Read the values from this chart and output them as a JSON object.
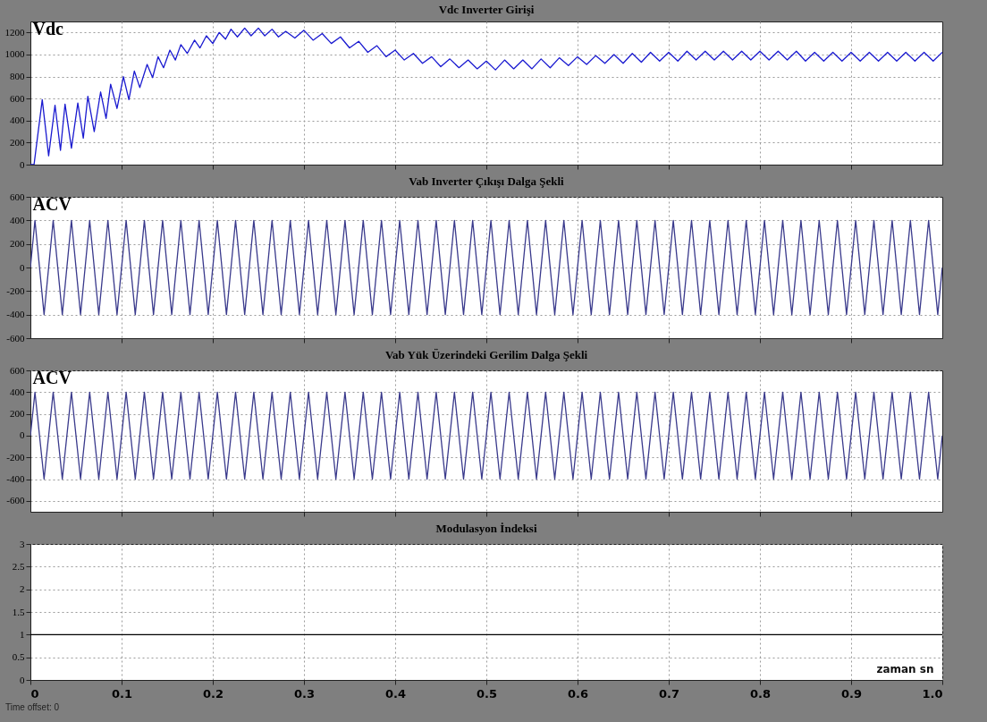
{
  "chart_data": [
    {
      "type": "line",
      "title": "Vdc Inverter Girişi",
      "ylabel": "Vdc",
      "tick_labels": "y",
      "grid": true,
      "xlim": [
        0,
        1
      ],
      "xticks": [
        0.1,
        0.2,
        0.3,
        0.4,
        0.5,
        0.6,
        0.7,
        0.8,
        0.9
      ],
      "ylim": [
        0,
        1300
      ],
      "yticks": [
        0,
        200,
        400,
        600,
        800,
        1000,
        1200
      ],
      "x": [
        0,
        0.004,
        0.013,
        0.02,
        0.027,
        0.033,
        0.038,
        0.045,
        0.052,
        0.058,
        0.063,
        0.07,
        0.077,
        0.083,
        0.088,
        0.095,
        0.102,
        0.108,
        0.114,
        0.12,
        0.128,
        0.134,
        0.14,
        0.146,
        0.153,
        0.159,
        0.165,
        0.172,
        0.18,
        0.186,
        0.193,
        0.2,
        0.207,
        0.214,
        0.22,
        0.227,
        0.235,
        0.242,
        0.25,
        0.257,
        0.265,
        0.272,
        0.28,
        0.29,
        0.3,
        0.31,
        0.32,
        0.33,
        0.34,
        0.35,
        0.36,
        0.37,
        0.38,
        0.39,
        0.4,
        0.41,
        0.42,
        0.43,
        0.44,
        0.45,
        0.46,
        0.47,
        0.48,
        0.49,
        0.5,
        0.51,
        0.52,
        0.53,
        0.54,
        0.55,
        0.56,
        0.57,
        0.58,
        0.59,
        0.6,
        0.61,
        0.62,
        0.63,
        0.64,
        0.65,
        0.66,
        0.67,
        0.68,
        0.69,
        0.7,
        0.71,
        0.72,
        0.73,
        0.74,
        0.75,
        0.76,
        0.77,
        0.78,
        0.79,
        0.8,
        0.81,
        0.82,
        0.83,
        0.84,
        0.85,
        0.86,
        0.87,
        0.88,
        0.89,
        0.9,
        0.91,
        0.92,
        0.93,
        0.94,
        0.95,
        0.96,
        0.97,
        0.98,
        0.99,
        1
      ],
      "series": [
        {
          "color": "#1a1ad0",
          "values": [
            0,
            0,
            590,
            80,
            540,
            130,
            550,
            150,
            560,
            240,
            620,
            300,
            660,
            420,
            730,
            510,
            800,
            590,
            850,
            700,
            910,
            790,
            980,
            880,
            1040,
            950,
            1090,
            1010,
            1130,
            1060,
            1170,
            1100,
            1200,
            1140,
            1230,
            1160,
            1240,
            1170,
            1240,
            1170,
            1230,
            1160,
            1210,
            1150,
            1220,
            1130,
            1190,
            1100,
            1160,
            1060,
            1120,
            1020,
            1080,
            980,
            1040,
            950,
            1010,
            920,
            980,
            890,
            960,
            880,
            950,
            870,
            940,
            860,
            950,
            870,
            950,
            870,
            960,
            880,
            970,
            900,
            980,
            910,
            990,
            920,
            1000,
            920,
            1010,
            930,
            1020,
            940,
            1020,
            940,
            1030,
            950,
            1030,
            950,
            1030,
            950,
            1030,
            950,
            1030,
            950,
            1030,
            950,
            1030,
            940,
            1020,
            940,
            1020,
            940,
            1020,
            940,
            1020,
            940,
            1020,
            940,
            1020,
            940,
            1020,
            940,
            1020
          ]
        }
      ]
    },
    {
      "type": "line",
      "title": "Vab Inverter Çıkışı Dalga Şekli",
      "ylabel": "ACV",
      "tick_labels": "y",
      "grid": true,
      "xlim": [
        0,
        1
      ],
      "xticks": [
        0.1,
        0.2,
        0.3,
        0.4,
        0.5,
        0.6,
        0.7,
        0.8,
        0.9
      ],
      "ylim": [
        -600,
        600
      ],
      "yticks": [
        -600,
        -400,
        -200,
        0,
        200,
        400,
        600
      ],
      "x": [
        0,
        0.005,
        0.015,
        0.025,
        0.035,
        0.045,
        0.055,
        0.065,
        0.075,
        0.085,
        0.095,
        0.105,
        0.115,
        0.125,
        0.135,
        0.145,
        0.155,
        0.165,
        0.175,
        0.185,
        0.195,
        0.205,
        0.215,
        0.225,
        0.235,
        0.245,
        0.255,
        0.265,
        0.275,
        0.285,
        0.295,
        0.305,
        0.315,
        0.325,
        0.335,
        0.345,
        0.355,
        0.365,
        0.375,
        0.385,
        0.395,
        0.405,
        0.415,
        0.425,
        0.435,
        0.445,
        0.455,
        0.465,
        0.475,
        0.485,
        0.495,
        0.505,
        0.515,
        0.525,
        0.535,
        0.545,
        0.555,
        0.565,
        0.575,
        0.585,
        0.595,
        0.605,
        0.615,
        0.625,
        0.635,
        0.645,
        0.655,
        0.665,
        0.675,
        0.685,
        0.695,
        0.705,
        0.715,
        0.725,
        0.735,
        0.745,
        0.755,
        0.765,
        0.775,
        0.785,
        0.795,
        0.805,
        0.815,
        0.825,
        0.835,
        0.845,
        0.855,
        0.865,
        0.875,
        0.885,
        0.895,
        0.905,
        0.915,
        0.925,
        0.935,
        0.945,
        0.955,
        0.965,
        0.975,
        0.985,
        0.995,
        1
      ],
      "series": [
        {
          "color": "#3a3a8c",
          "values": [
            0,
            400,
            -400,
            400,
            -400,
            400,
            -400,
            400,
            -400,
            400,
            -400,
            400,
            -400,
            400,
            -400,
            400,
            -400,
            400,
            -400,
            400,
            -400,
            400,
            -400,
            400,
            -400,
            400,
            -400,
            400,
            -400,
            400,
            -400,
            400,
            -400,
            400,
            -400,
            400,
            -400,
            400,
            -400,
            400,
            -400,
            400,
            -400,
            400,
            -400,
            400,
            -400,
            400,
            -400,
            400,
            -400,
            400,
            -400,
            400,
            -400,
            400,
            -400,
            400,
            -400,
            400,
            -400,
            400,
            -400,
            400,
            -400,
            400,
            -400,
            400,
            -400,
            400,
            -400,
            400,
            -400,
            400,
            -400,
            400,
            -400,
            400,
            -400,
            400,
            -400,
            400,
            -400,
            400,
            -400,
            400,
            -400,
            400,
            -400,
            400,
            -400,
            400,
            -400,
            400,
            -400,
            400,
            -400,
            400,
            -400,
            400,
            -400,
            0
          ]
        }
      ]
    },
    {
      "type": "line",
      "title": "Vab  Yük Üzerindeki Gerilim Dalga Şekli",
      "ylabel": "ACV",
      "tick_labels": "y",
      "grid": true,
      "xlim": [
        0,
        1
      ],
      "xticks": [
        0.1,
        0.2,
        0.3,
        0.4,
        0.5,
        0.6,
        0.7,
        0.8,
        0.9
      ],
      "ylim": [
        -700,
        600
      ],
      "yticks": [
        -600,
        -400,
        -200,
        0,
        200,
        400,
        600
      ],
      "x": [
        0,
        0.005,
        0.015,
        0.025,
        0.035,
        0.045,
        0.055,
        0.065,
        0.075,
        0.085,
        0.095,
        0.105,
        0.115,
        0.125,
        0.135,
        0.145,
        0.155,
        0.165,
        0.175,
        0.185,
        0.195,
        0.205,
        0.215,
        0.225,
        0.235,
        0.245,
        0.255,
        0.265,
        0.275,
        0.285,
        0.295,
        0.305,
        0.315,
        0.325,
        0.335,
        0.345,
        0.355,
        0.365,
        0.375,
        0.385,
        0.395,
        0.405,
        0.415,
        0.425,
        0.435,
        0.445,
        0.455,
        0.465,
        0.475,
        0.485,
        0.495,
        0.505,
        0.515,
        0.525,
        0.535,
        0.545,
        0.555,
        0.565,
        0.575,
        0.585,
        0.595,
        0.605,
        0.615,
        0.625,
        0.635,
        0.645,
        0.655,
        0.665,
        0.675,
        0.685,
        0.695,
        0.705,
        0.715,
        0.725,
        0.735,
        0.745,
        0.755,
        0.765,
        0.775,
        0.785,
        0.795,
        0.805,
        0.815,
        0.825,
        0.835,
        0.845,
        0.855,
        0.865,
        0.875,
        0.885,
        0.895,
        0.905,
        0.915,
        0.925,
        0.935,
        0.945,
        0.955,
        0.965,
        0.975,
        0.985,
        0.995,
        1
      ],
      "series": [
        {
          "color": "#3a3a8c",
          "values": [
            0,
            400,
            -400,
            400,
            -400,
            400,
            -400,
            400,
            -400,
            400,
            -400,
            400,
            -400,
            400,
            -400,
            400,
            -400,
            400,
            -400,
            400,
            -400,
            400,
            -400,
            400,
            -400,
            400,
            -400,
            400,
            -400,
            400,
            -400,
            400,
            -400,
            400,
            -400,
            400,
            -400,
            400,
            -400,
            400,
            -400,
            400,
            -400,
            400,
            -400,
            400,
            -400,
            400,
            -400,
            400,
            -400,
            400,
            -400,
            400,
            -400,
            400,
            -400,
            400,
            -400,
            400,
            -400,
            400,
            -400,
            400,
            -400,
            400,
            -400,
            400,
            -400,
            400,
            -400,
            400,
            -400,
            400,
            -400,
            400,
            -400,
            400,
            -400,
            400,
            -400,
            400,
            -400,
            400,
            -400,
            400,
            -400,
            400,
            -400,
            400,
            -400,
            400,
            -400,
            400,
            -400,
            400,
            -400,
            400,
            -400,
            400,
            -400,
            0
          ]
        }
      ]
    },
    {
      "type": "line",
      "title": "Modulasyon İndeksi",
      "xlabel": "zaman sn",
      "grid": true,
      "xlim": [
        0,
        1
      ],
      "xticks": [
        0,
        0.1,
        0.2,
        0.3,
        0.4,
        0.5,
        0.6,
        0.7,
        0.8,
        0.9,
        {
          "value": 1,
          "label": "1.0"
        }
      ],
      "ylim": [
        0,
        3
      ],
      "yticks": [
        0,
        0.5,
        1,
        1.5,
        2,
        2.5,
        3
      ],
      "x": [
        0,
        1
      ],
      "series": [
        {
          "color": "#000000",
          "values": [
            1,
            1
          ]
        }
      ],
      "annotations": [
        "Time offset: 0"
      ]
    }
  ]
}
